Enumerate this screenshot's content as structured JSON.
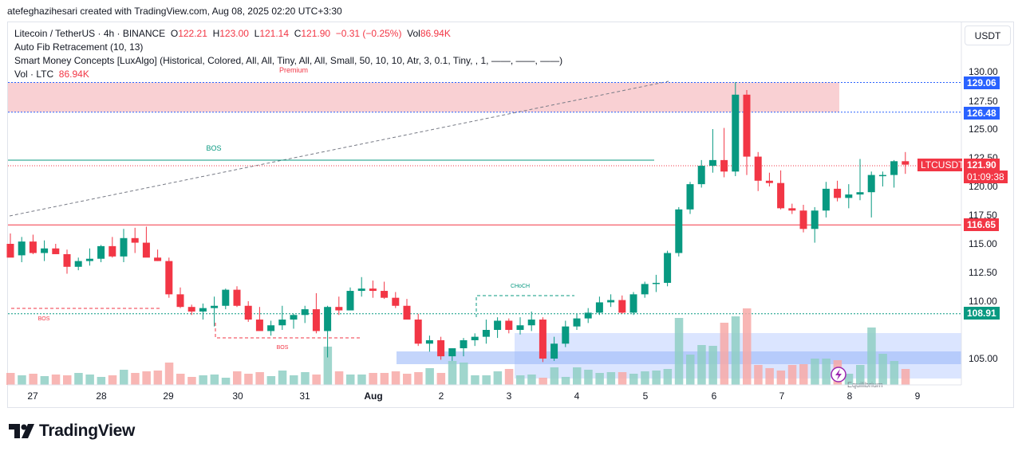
{
  "header": {
    "attribution": "atefeghazihesari created with TradingView.com, Aug 08, 2025 02:20 UTC+3:30"
  },
  "legend": {
    "symbol": "Litecoin / TetherUS · 4h · BINANCE",
    "o_label": "O",
    "o_value": "122.21",
    "h_label": "H",
    "h_value": "123.00",
    "l_label": "L",
    "l_value": "121.14",
    "c_label": "C",
    "c_value": "121.90",
    "change": "−0.31 (−0.25%)",
    "vol_label": "Vol",
    "vol_value": "86.94K",
    "indicator_fib": "Auto Fib Retracement (10, 13)",
    "indicator_smc": "Smart Money Concepts [LuxAlgo] (Historical, Colored, All, All, Tiny, All, All, Small, 50, 10, 10, Atr, 3, 0.1, Tiny, , 1, ——, ——, ——)",
    "vol_indicator_label": "Vol · LTC",
    "vol_indicator_value": "86.94K"
  },
  "currency_button": "USDT",
  "colors": {
    "up": "#089981",
    "down": "#f23645",
    "vol_up": "#8fcfc4",
    "vol_down": "#f7a9a7",
    "premium_zone": "#f9d0d3",
    "discount_zone": "#cfdcff",
    "blue_line": "#2962ff"
  },
  "price_tags": {
    "p129": "129.06",
    "p126": "126.48",
    "p116": "116.65",
    "p108": "108.91",
    "symbol_tag": "LTCUSDT",
    "last_price": "121.90",
    "countdown": "01:09:38"
  },
  "annotations": {
    "premium": "Premium",
    "bos_top": "BOS",
    "bos_left": "BOS",
    "bos_mid": "BOS",
    "choch": "CHoCH",
    "equilibrium": "Equilibrium"
  },
  "footer": {
    "brand": "TradingView"
  },
  "chart_data": {
    "type": "candlestick",
    "y_ticks": [
      "130.00",
      "127.50",
      "125.00",
      "122.50",
      "120.00",
      "117.50",
      "115.00",
      "112.50",
      "110.00",
      "105.00"
    ],
    "x_ticks": [
      "27",
      "28",
      "29",
      "30",
      "31",
      "Aug",
      "2",
      "3",
      "4",
      "5",
      "6",
      "7",
      "8",
      "9"
    ],
    "ylim": [
      103.8,
      131.5
    ],
    "levels": {
      "premium_top": 129.06,
      "premium_bottom": 126.48,
      "bos": 122.3,
      "support": 116.65,
      "mid": 108.91
    },
    "candles": [
      [
        115.0,
        115.9,
        114.0,
        113.8
      ],
      [
        114.0,
        115.6,
        113.4,
        115.2
      ],
      [
        115.2,
        115.8,
        114.1,
        114.2
      ],
      [
        114.2,
        115.3,
        113.5,
        114.6
      ],
      [
        114.6,
        115.0,
        114.1,
        114.1
      ],
      [
        114.1,
        114.5,
        112.4,
        113.0
      ],
      [
        113.0,
        113.8,
        112.7,
        113.5
      ],
      [
        113.5,
        114.6,
        113.1,
        113.7
      ],
      [
        113.7,
        114.9,
        113.4,
        114.8
      ],
      [
        114.8,
        115.6,
        113.8,
        113.9
      ],
      [
        113.9,
        116.3,
        113.4,
        115.5
      ],
      [
        115.5,
        116.4,
        114.2,
        115.1
      ],
      [
        115.1,
        116.5,
        113.9,
        113.8
      ],
      [
        113.8,
        114.5,
        113.5,
        113.5
      ],
      [
        113.5,
        113.8,
        110.3,
        110.6
      ],
      [
        110.6,
        111.2,
        109.4,
        109.5
      ],
      [
        109.5,
        109.7,
        108.8,
        109.1
      ],
      [
        109.1,
        109.8,
        108.4,
        109.4
      ],
      [
        109.4,
        110.4,
        107.8,
        109.6
      ],
      [
        109.6,
        111.1,
        109.3,
        111.0
      ],
      [
        111.0,
        111.3,
        109.5,
        109.6
      ],
      [
        109.6,
        110.0,
        108.2,
        108.4
      ],
      [
        108.4,
        109.5,
        107.6,
        107.4
      ],
      [
        107.4,
        108.3,
        107.0,
        107.9
      ],
      [
        107.9,
        109.6,
        107.5,
        108.4
      ],
      [
        108.4,
        108.9,
        107.6,
        108.8
      ],
      [
        108.8,
        109.6,
        108.1,
        109.3
      ],
      [
        109.3,
        110.7,
        107.2,
        107.4
      ],
      [
        107.4,
        109.6,
        105.1,
        109.5
      ],
      [
        109.5,
        110.4,
        108.8,
        109.2
      ],
      [
        109.2,
        111.2,
        109.2,
        110.9
      ],
      [
        110.9,
        112.1,
        110.4,
        111.1
      ],
      [
        111.1,
        111.8,
        110.3,
        110.9
      ],
      [
        110.9,
        111.7,
        110.2,
        110.3
      ],
      [
        110.3,
        110.8,
        109.4,
        109.6
      ],
      [
        109.6,
        110.2,
        108.4,
        108.4
      ],
      [
        108.4,
        108.9,
        106.1,
        106.3
      ],
      [
        106.3,
        107.0,
        105.6,
        106.6
      ],
      [
        106.6,
        106.9,
        104.9,
        105.2
      ],
      [
        105.2,
        105.9,
        104.8,
        105.9
      ],
      [
        105.9,
        106.8,
        105.2,
        106.6
      ],
      [
        106.6,
        107.2,
        106.1,
        106.9
      ],
      [
        106.9,
        108.4,
        106.3,
        107.5
      ],
      [
        107.5,
        108.6,
        106.8,
        108.3
      ],
      [
        108.3,
        108.5,
        107.2,
        107.5
      ],
      [
        107.5,
        108.6,
        107.1,
        107.9
      ],
      [
        107.9,
        109.1,
        107.4,
        108.4
      ],
      [
        108.4,
        108.6,
        104.7,
        105.0
      ],
      [
        105.0,
        106.9,
        104.8,
        106.3
      ],
      [
        106.3,
        108.3,
        106.0,
        107.8
      ],
      [
        107.8,
        108.9,
        107.5,
        108.5
      ],
      [
        108.5,
        109.4,
        108.1,
        109.0
      ],
      [
        109.0,
        110.4,
        108.8,
        109.9
      ],
      [
        109.9,
        110.6,
        109.5,
        110.1
      ],
      [
        110.1,
        110.5,
        108.9,
        109.0
      ],
      [
        109.0,
        110.8,
        108.8,
        110.6
      ],
      [
        110.6,
        111.7,
        110.3,
        111.5
      ],
      [
        111.5,
        112.3,
        110.8,
        111.6
      ],
      [
        111.6,
        114.4,
        111.3,
        114.2
      ],
      [
        114.2,
        118.2,
        113.9,
        118.0
      ],
      [
        118.0,
        120.4,
        117.6,
        120.2
      ],
      [
        120.2,
        122.3,
        119.9,
        121.8
      ],
      [
        121.8,
        125.0,
        121.2,
        122.3
      ],
      [
        122.3,
        125.1,
        120.8,
        121.3
      ],
      [
        121.3,
        129.1,
        120.9,
        128.0
      ],
      [
        128.0,
        128.4,
        121.0,
        122.6
      ],
      [
        122.6,
        123.0,
        119.6,
        120.5
      ],
      [
        120.5,
        121.2,
        120.0,
        120.3
      ],
      [
        120.3,
        121.4,
        118.0,
        118.1
      ],
      [
        118.1,
        118.5,
        117.6,
        117.9
      ],
      [
        117.9,
        118.4,
        116.0,
        116.3
      ],
      [
        116.3,
        118.2,
        115.1,
        117.9
      ],
      [
        117.9,
        120.4,
        117.3,
        119.8
      ],
      [
        119.8,
        120.5,
        118.7,
        119.0
      ],
      [
        119.0,
        120.2,
        118.1,
        119.3
      ],
      [
        119.3,
        122.4,
        118.8,
        119.5
      ],
      [
        119.5,
        121.3,
        117.3,
        121.0
      ],
      [
        121.0,
        121.3,
        120.0,
        121.0
      ],
      [
        121.0,
        122.3,
        119.9,
        122.2
      ],
      [
        122.2,
        123.0,
        121.1,
        121.9
      ]
    ]
  }
}
